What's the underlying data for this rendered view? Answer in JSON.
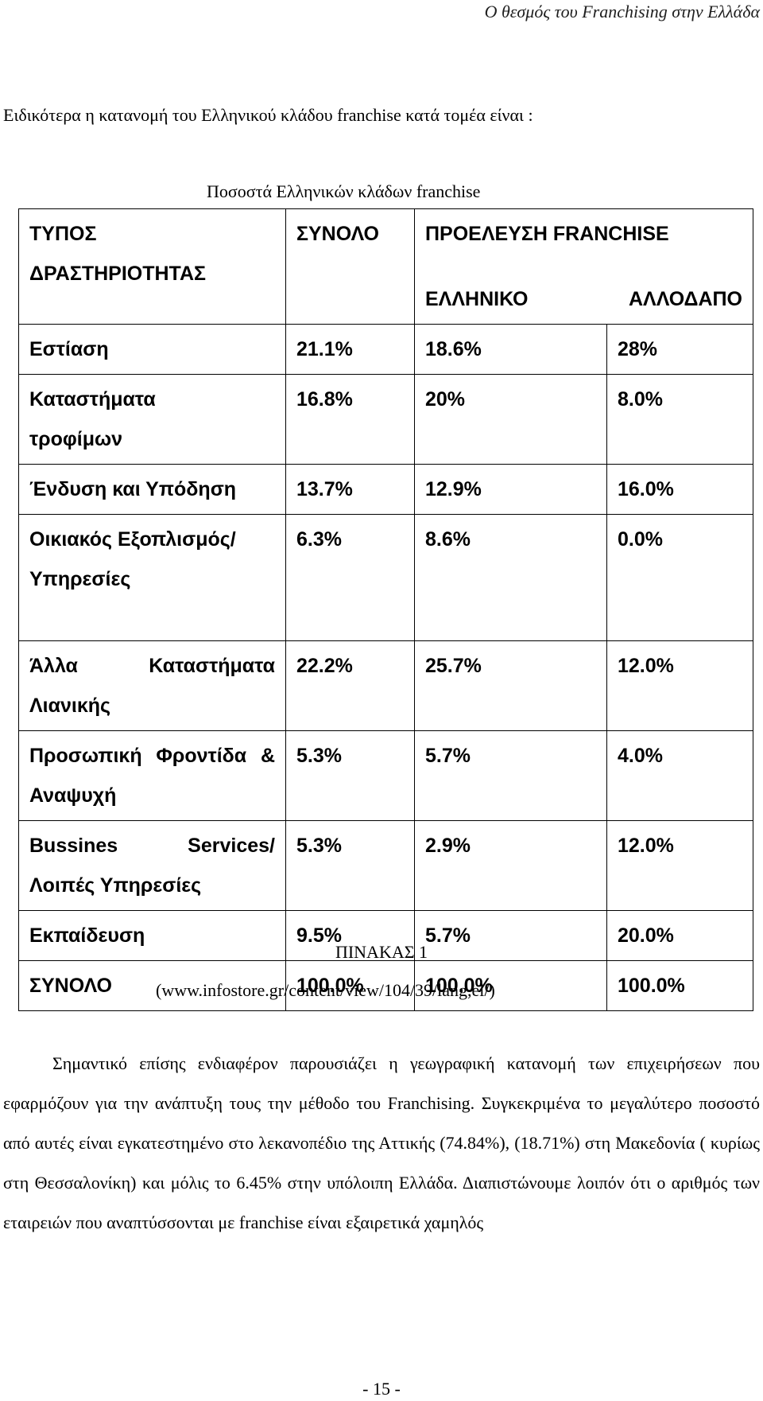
{
  "header": "Ο θεσμός του Franchising στην Ελλάδα",
  "intro": "Ειδικότερα η κατανομή του Ελληνικού κλάδου franchise κατά τομέα είναι :",
  "table_title": "Ποσοστά Ελληνικών κλάδων franchise",
  "table": {
    "col_type": "ΤΥΠΟΣ ΔΡΑΣΤΗΡΙΟΤΗΤΑΣ",
    "col_total": "ΣΥΝΟΛΟ",
    "col_origin": "ΠΡΟΕΛΕΥΣΗ FRANCHISE",
    "col_greek": "ΕΛΛΗΝΙΚΟ",
    "col_foreign": "ΑΛΛΟΔΑΠΟ",
    "rows": [
      {
        "type": "Εστίαση",
        "total": "21.1%",
        "greek": "18.6%",
        "foreign": "28%"
      },
      {
        "type": "Καταστήματα τροφίμων",
        "total": "16.8%",
        "greek": "20%",
        "foreign": "8.0%"
      },
      {
        "type": "Ένδυση και Υπόδηση",
        "total": "13.7%",
        "greek": "12.9%",
        "foreign": "16.0%"
      },
      {
        "type": "Οικιακός Εξοπλισμός/Υπηρεσίες",
        "total": "6.3%",
        "greek": "8.6%",
        "foreign": "0.0%"
      },
      {
        "type": "Άλλα Καταστήματα Λιανικής",
        "total": "22.2%",
        "greek": "25.7%",
        "foreign": "12.0%"
      },
      {
        "type": "Προσωπική Φροντίδα & Αναψυχή",
        "total": "5.3%",
        "greek": "5.7%",
        "foreign": "4.0%"
      },
      {
        "type": "Bussines Services/ Λοιπές Υπηρεσίες",
        "total": "5.3%",
        "greek": "2.9%",
        "foreign": "12.0%"
      },
      {
        "type": "Εκπαίδευση",
        "total": "9.5%",
        "greek": "5.7%",
        "foreign": "20.0%"
      },
      {
        "type": "ΣΥΝΟΛΟ",
        "total": "100.0%",
        "greek": "100.0%",
        "foreign": "100.0%"
      }
    ]
  },
  "caption": "ΠΙΝΑΚΑΣ 1",
  "source": "(www.infostore.gr/content/view/104/39/lang,el/)",
  "paragraph": "Σημαντικό επίσης ενδιαφέρον παρουσιάζει η γεωγραφική κατανομή των επιχειρήσεων που εφαρμόζουν για την ανάπτυξη τους την μέθοδο του Franchising. Συγκεκριμένα το μεγαλύτερο ποσοστό από αυτές είναι εγκατεστημένο στο λεκανοπέδιο της Αττικής (74.84%), (18.71%) στη Μακεδονία ( κυρίως στη Θεσσαλονίκη) και μόλις το 6.45% στην υπόλοιπη Ελλάδα. Διαπιστώνουμε λοιπόν ότι ο αριθμός των εταιρειών που αναπτύσσονται με franchise είναι εξαιρετικά χαμηλός",
  "page_number": "- 15 -"
}
